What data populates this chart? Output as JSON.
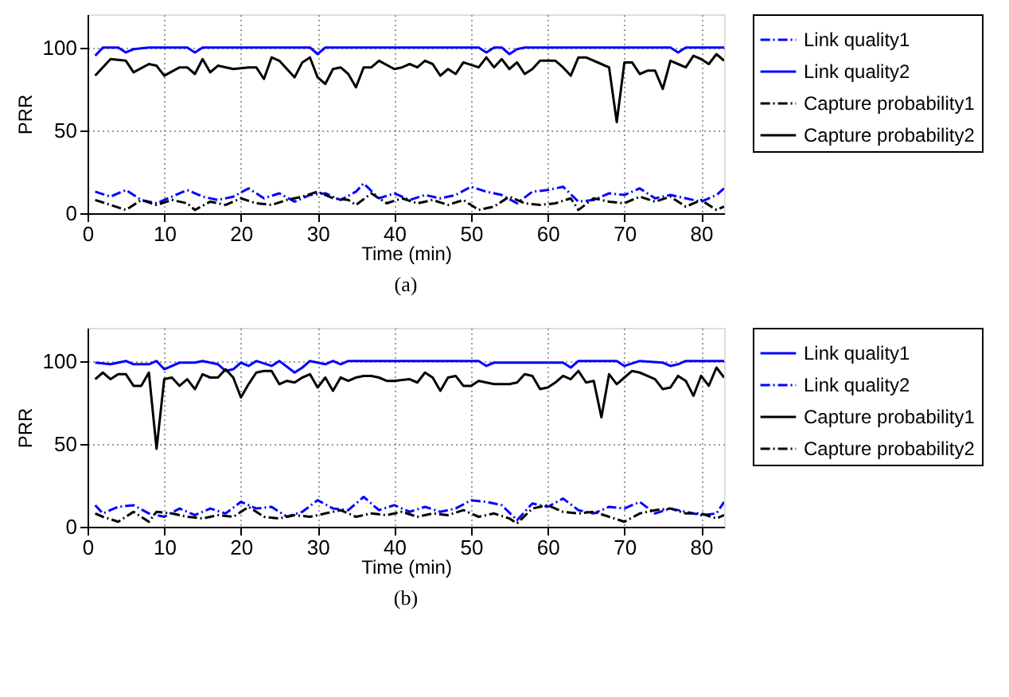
{
  "chart_data": [
    {
      "type": "line",
      "xlabel": "Time (min)",
      "ylabel": "PRR",
      "xlim": [
        0,
        83
      ],
      "ylim": [
        0,
        120
      ],
      "xticks": [
        0,
        10,
        20,
        30,
        40,
        50,
        60,
        70,
        80
      ],
      "yticks": [
        0,
        50,
        100
      ],
      "grid": true,
      "legend": "right",
      "annotations": [
        "(a)"
      ],
      "series": [
        {
          "name": "Link quality1",
          "color": "#0000ff",
          "line_style": "dashed",
          "x": [
            1,
            3,
            5,
            7,
            9,
            11,
            13,
            15,
            17,
            19,
            21,
            23,
            25,
            27,
            29,
            31,
            33,
            35,
            36,
            38,
            40,
            42,
            44,
            46,
            48,
            50,
            52,
            54,
            56,
            58,
            60,
            62,
            64,
            66,
            68,
            70,
            72,
            74,
            76,
            78,
            80,
            82,
            83
          ],
          "values": [
            13,
            10,
            14,
            8,
            6,
            10,
            14,
            10,
            8,
            10,
            15,
            9,
            12,
            7,
            11,
            12,
            8,
            13,
            18,
            9,
            12,
            8,
            11,
            9,
            11,
            16,
            13,
            11,
            6,
            13,
            14,
            16,
            7,
            8,
            12,
            11,
            15,
            9,
            11,
            9,
            7,
            11,
            15
          ]
        },
        {
          "name": "Link quality2",
          "color": "#0000ff",
          "line_style": "solid",
          "x": [
            1,
            2,
            4,
            5,
            6,
            8,
            13,
            14,
            15,
            17,
            29,
            30,
            31,
            51,
            52,
            53,
            54,
            55,
            56,
            57,
            76,
            77,
            78,
            83
          ],
          "values": [
            95,
            100,
            100,
            97,
            99,
            100,
            100,
            97,
            100,
            100,
            100,
            96,
            100,
            100,
            97,
            100,
            100,
            96,
            99,
            100,
            100,
            97,
            100,
            100
          ]
        },
        {
          "name": "Capture probability1",
          "color": "#000000",
          "line_style": "dashed",
          "x": [
            1,
            3,
            5,
            7,
            9,
            11,
            13,
            14,
            16,
            18,
            20,
            22,
            24,
            26,
            28,
            30,
            32,
            34,
            35,
            37,
            39,
            41,
            43,
            45,
            47,
            49,
            51,
            53,
            55,
            57,
            59,
            61,
            63,
            64,
            66,
            68,
            70,
            72,
            74,
            76,
            78,
            80,
            82,
            83
          ],
          "values": [
            8,
            5,
            2,
            8,
            5,
            8,
            6,
            2,
            7,
            5,
            9,
            6,
            5,
            8,
            10,
            13,
            9,
            8,
            5,
            12,
            6,
            9,
            6,
            8,
            5,
            8,
            2,
            4,
            10,
            6,
            5,
            6,
            9,
            2,
            9,
            7,
            6,
            10,
            7,
            10,
            4,
            8,
            2,
            4
          ]
        },
        {
          "name": "Capture probability2",
          "color": "#000000",
          "line_style": "solid",
          "x": [
            1,
            3,
            5,
            6,
            8,
            9,
            10,
            12,
            13,
            14,
            15,
            16,
            17,
            19,
            21,
            22,
            23,
            24,
            25,
            27,
            28,
            29,
            30,
            31,
            32,
            33,
            34,
            35,
            36,
            37,
            38,
            40,
            41,
            42,
            43,
            44,
            45,
            46,
            47,
            48,
            49,
            51,
            52,
            53,
            54,
            55,
            56,
            57,
            58,
            59,
            61,
            62,
            63,
            64,
            65,
            67,
            68,
            69,
            70,
            71,
            72,
            73,
            74,
            75,
            76,
            77,
            78,
            79,
            80,
            81,
            82,
            83
          ],
          "values": [
            83,
            93,
            92,
            85,
            90,
            89,
            83,
            88,
            88,
            84,
            93,
            85,
            89,
            87,
            88,
            88,
            81,
            94,
            92,
            82,
            91,
            94,
            82,
            78,
            87,
            88,
            84,
            76,
            88,
            88,
            92,
            87,
            88,
            90,
            88,
            92,
            90,
            83,
            87,
            84,
            91,
            88,
            94,
            88,
            93,
            87,
            91,
            84,
            87,
            92,
            92,
            88,
            83,
            94,
            94,
            90,
            88,
            55,
            91,
            91,
            84,
            86,
            86,
            75,
            92,
            90,
            88,
            95,
            93,
            90,
            96,
            92
          ]
        }
      ]
    },
    {
      "type": "line",
      "xlabel": "Time (min)",
      "ylabel": "PRR",
      "xlim": [
        0,
        83
      ],
      "ylim": [
        0,
        120
      ],
      "xticks": [
        0,
        10,
        20,
        30,
        40,
        50,
        60,
        70,
        80
      ],
      "yticks": [
        0,
        50,
        100
      ],
      "grid": true,
      "legend": "right",
      "annotations": [
        "(b)"
      ],
      "series": [
        {
          "name": "Link quality1",
          "color": "#0000ff",
          "line_style": "solid",
          "x": [
            1,
            3,
            5,
            6,
            8,
            9,
            10,
            12,
            14,
            15,
            17,
            18,
            19,
            20,
            21,
            22,
            24,
            25,
            27,
            28,
            29,
            31,
            32,
            33,
            34,
            35,
            51,
            52,
            53,
            62,
            63,
            64,
            69,
            70,
            72,
            75,
            76,
            77,
            78,
            83
          ],
          "values": [
            99,
            98,
            100,
            98,
            98,
            100,
            95,
            99,
            99,
            100,
            98,
            94,
            95,
            99,
            97,
            100,
            97,
            100,
            93,
            96,
            100,
            98,
            100,
            98,
            100,
            100,
            100,
            97,
            99,
            99,
            96,
            100,
            100,
            97,
            100,
            99,
            97,
            98,
            100,
            100
          ]
        },
        {
          "name": "Link quality2",
          "color": "#0000ff",
          "line_style": "dashed",
          "x": [
            1,
            2,
            4,
            6,
            8,
            10,
            12,
            14,
            16,
            18,
            20,
            22,
            24,
            26,
            28,
            30,
            32,
            34,
            36,
            38,
            40,
            42,
            44,
            46,
            48,
            50,
            52,
            54,
            56,
            58,
            60,
            62,
            64,
            66,
            68,
            70,
            72,
            74,
            76,
            78,
            80,
            82,
            83
          ],
          "values": [
            13,
            8,
            12,
            13,
            8,
            6,
            11,
            7,
            11,
            8,
            15,
            11,
            12,
            6,
            9,
            16,
            11,
            10,
            18,
            10,
            13,
            9,
            12,
            9,
            11,
            16,
            15,
            13,
            4,
            14,
            12,
            17,
            10,
            8,
            12,
            11,
            15,
            8,
            11,
            9,
            7,
            8,
            15
          ]
        },
        {
          "name": "Capture probability1",
          "color": "#000000",
          "line_style": "solid",
          "x": [
            1,
            2,
            3,
            4,
            5,
            6,
            7,
            8,
            9,
            10,
            11,
            12,
            13,
            14,
            15,
            16,
            17,
            18,
            19,
            20,
            21,
            22,
            23,
            24,
            25,
            26,
            27,
            28,
            29,
            30,
            31,
            32,
            33,
            34,
            35,
            36,
            37,
            38,
            39,
            40,
            42,
            43,
            44,
            45,
            46,
            47,
            48,
            49,
            50,
            51,
            52,
            53,
            55,
            56,
            57,
            58,
            59,
            60,
            61,
            62,
            63,
            64,
            65,
            66,
            67,
            68,
            69,
            70,
            71,
            72,
            73,
            74,
            75,
            76,
            77,
            78,
            79,
            80,
            81,
            82,
            83
          ],
          "values": [
            89,
            93,
            89,
            92,
            92,
            85,
            85,
            93,
            47,
            89,
            90,
            85,
            89,
            83,
            92,
            90,
            90,
            95,
            90,
            78,
            86,
            93,
            94,
            94,
            86,
            88,
            87,
            90,
            92,
            84,
            90,
            82,
            90,
            88,
            90,
            91,
            91,
            90,
            88,
            88,
            89,
            87,
            93,
            90,
            82,
            90,
            91,
            85,
            85,
            88,
            87,
            86,
            86,
            87,
            92,
            91,
            83,
            84,
            87,
            91,
            89,
            94,
            87,
            88,
            66,
            92,
            86,
            90,
            94,
            93,
            91,
            89,
            83,
            84,
            91,
            88,
            79,
            91,
            85,
            96,
            90
          ]
        },
        {
          "name": "Capture probability2",
          "color": "#000000",
          "line_style": "dashed",
          "x": [
            1,
            2,
            4,
            6,
            8,
            9,
            11,
            13,
            15,
            17,
            19,
            21,
            23,
            25,
            27,
            29,
            31,
            33,
            35,
            37,
            39,
            41,
            43,
            45,
            47,
            49,
            51,
            53,
            55,
            56,
            58,
            60,
            62,
            64,
            66,
            68,
            70,
            72,
            74,
            76,
            78,
            80,
            82,
            83
          ],
          "values": [
            8,
            6,
            3,
            9,
            3,
            9,
            8,
            6,
            5,
            7,
            6,
            12,
            6,
            5,
            7,
            6,
            8,
            10,
            6,
            8,
            7,
            9,
            6,
            8,
            7,
            10,
            6,
            8,
            5,
            2,
            11,
            13,
            9,
            8,
            9,
            6,
            3,
            8,
            10,
            11,
            8,
            8,
            5,
            7
          ]
        }
      ]
    }
  ]
}
